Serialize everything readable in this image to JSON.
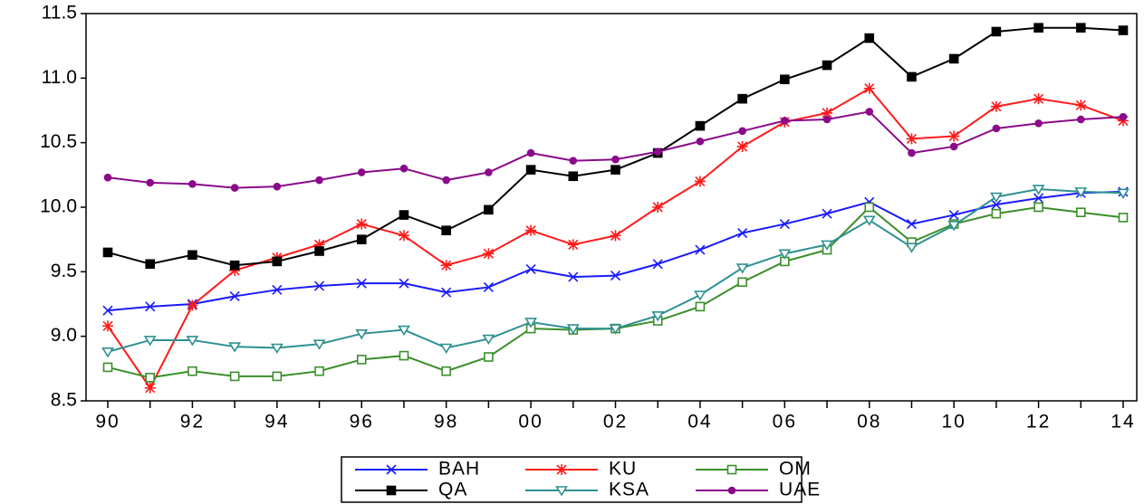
{
  "chart_data": {
    "type": "line",
    "categories": [
      "90",
      null,
      "92",
      null,
      "94",
      null,
      "96",
      null,
      "98",
      null,
      "00",
      null,
      "02",
      null,
      "04",
      null,
      "06",
      null,
      "08",
      null,
      "10",
      null,
      "12",
      null,
      "14"
    ],
    "ylim": [
      8.5,
      11.5
    ],
    "yticks": [
      8.5,
      {
        "value": 9,
        "label": "9.0"
      },
      9.5,
      {
        "value": 10,
        "label": "10.0"
      },
      10.5,
      {
        "value": 11,
        "label": "11.0"
      },
      11.5
    ],
    "grid": false,
    "legend": "bottom",
    "series": [
      {
        "name": "BAH",
        "color": "#1a1aff",
        "marker": "x",
        "values": [
          9.2,
          9.23,
          9.25,
          9.31,
          9.36,
          9.39,
          9.41,
          9.41,
          9.34,
          9.38,
          9.52,
          9.46,
          9.47,
          9.56,
          9.67,
          9.8,
          9.87,
          9.95,
          10.04,
          9.87,
          9.94,
          10.02,
          10.07,
          10.11,
          10.12
        ]
      },
      {
        "name": "KU",
        "color": "#ff1a1a",
        "marker": "asterisk",
        "values": [
          9.08,
          8.6,
          9.24,
          9.51,
          9.61,
          9.71,
          9.87,
          9.78,
          9.55,
          9.64,
          9.82,
          9.71,
          9.78,
          10.0,
          10.2,
          10.47,
          10.66,
          10.73,
          10.92,
          10.53,
          10.55,
          10.78,
          10.84,
          10.79,
          10.67
        ]
      },
      {
        "name": "OM",
        "color": "#3a8f2a",
        "marker": "open-square",
        "values": [
          8.76,
          8.68,
          8.73,
          8.69,
          8.69,
          8.73,
          8.82,
          8.85,
          8.73,
          8.84,
          9.06,
          9.05,
          9.06,
          9.12,
          9.23,
          9.42,
          9.58,
          9.67,
          10.0,
          9.73,
          9.87,
          9.95,
          10.0,
          9.96,
          9.92
        ]
      },
      {
        "name": "QA",
        "color": "#000000",
        "marker": "square",
        "values": [
          9.65,
          9.56,
          9.63,
          9.55,
          9.58,
          9.66,
          9.75,
          9.94,
          9.82,
          9.98,
          10.29,
          10.24,
          10.29,
          10.42,
          10.63,
          10.84,
          10.99,
          11.1,
          11.31,
          11.01,
          11.15,
          11.36,
          11.39,
          11.39,
          11.37
        ]
      },
      {
        "name": "KSA",
        "color": "#2f9090",
        "marker": "open-triangle-down",
        "values": [
          8.88,
          8.97,
          8.97,
          8.92,
          8.91,
          8.94,
          9.02,
          9.05,
          8.91,
          8.98,
          9.11,
          9.06,
          9.06,
          9.16,
          9.32,
          9.53,
          9.64,
          9.71,
          9.9,
          9.69,
          9.86,
          10.08,
          10.14,
          10.12,
          10.11
        ]
      },
      {
        "name": "UAE",
        "color": "#8a0a8a",
        "marker": "circle",
        "values": [
          10.23,
          10.19,
          10.18,
          10.15,
          10.16,
          10.21,
          10.27,
          10.3,
          10.21,
          10.27,
          10.42,
          10.36,
          10.37,
          10.43,
          10.51,
          10.59,
          10.67,
          10.68,
          10.74,
          10.42,
          10.47,
          10.61,
          10.65,
          10.68,
          10.7
        ]
      }
    ]
  }
}
